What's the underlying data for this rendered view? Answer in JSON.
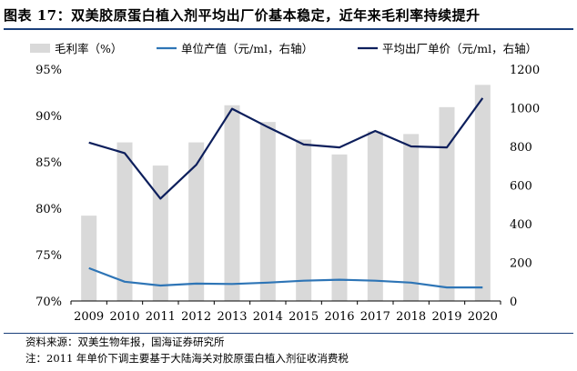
{
  "title": "图表 17：双美胶原蛋白植入剂平均出厂价基本稳定，近年来毛利率持续提升",
  "source": "资料来源：双美生物年报，国海证券研究所",
  "footnote": "注：2011 年单价下调主要基于大陆海关对胶原蛋白植入剂征收消费税",
  "colors": {
    "bar": "#d9d9d9",
    "unit_price": "#2e75b6",
    "avg_price": "#0d1f5c",
    "rule": "#1a3f7a"
  },
  "chart_data": {
    "type": "bar+line",
    "categories": [
      "2009",
      "2010",
      "2011",
      "2012",
      "2013",
      "2014",
      "2015",
      "2016",
      "2017",
      "2018",
      "2019",
      "2020"
    ],
    "series": [
      {
        "name": "毛利率（%）",
        "type": "bar",
        "axis": "left",
        "color": "#d9d9d9",
        "values": [
          79.2,
          87.1,
          84.6,
          87.1,
          91.1,
          89.3,
          87.4,
          85.8,
          88.3,
          88.0,
          90.9,
          93.3
        ]
      },
      {
        "name": "单位产值（元/ml，右轴）",
        "type": "line",
        "axis": "right",
        "color": "#2e75b6",
        "values": [
          170,
          100,
          80,
          90,
          88,
          95,
          105,
          110,
          105,
          95,
          70,
          70
        ]
      },
      {
        "name": "平均出厂单价（元/ml，右轴）",
        "type": "line",
        "axis": "right",
        "color": "#0d1f5c",
        "values": [
          820,
          765,
          530,
          705,
          995,
          900,
          810,
          795,
          880,
          800,
          795,
          1050
        ]
      }
    ],
    "left_axis": {
      "min": 70,
      "max": 95,
      "step": 5,
      "tick_labels": [
        "70%",
        "75%",
        "80%",
        "85%",
        "90%",
        "95%"
      ]
    },
    "right_axis": {
      "min": 0,
      "max": 1200,
      "step": 200,
      "tick_labels": [
        "0",
        "200",
        "400",
        "600",
        "800",
        "1000",
        "1200"
      ]
    },
    "legend_position": "top"
  }
}
